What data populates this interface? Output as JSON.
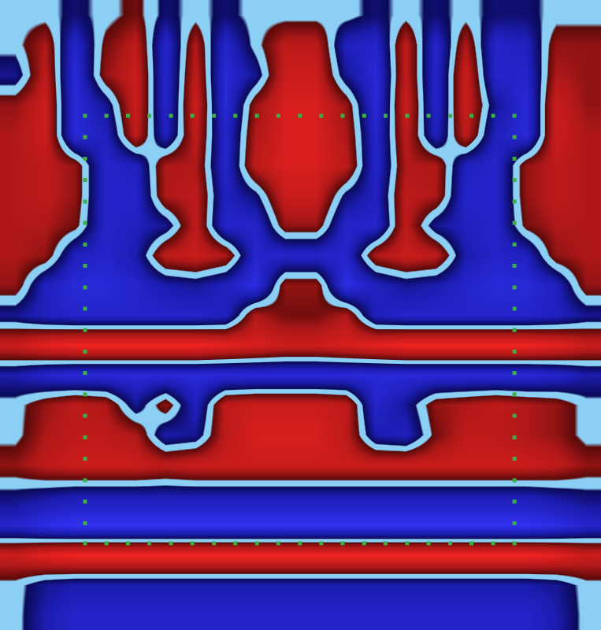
{
  "chart_data": {
    "type": "heatmap",
    "x": [
      0,
      1,
      2,
      3,
      4,
      5,
      6,
      7,
      8,
      9,
      10,
      11,
      12,
      13,
      14,
      15,
      16,
      17,
      18,
      19
    ],
    "y": [
      0,
      1,
      2,
      3,
      4,
      5,
      6,
      7,
      8,
      9,
      10,
      11,
      12,
      13,
      14,
      15,
      16,
      17,
      18,
      19,
      20
    ],
    "z": [
      [
        0,
        0,
        -0.2,
        0,
        0.2,
        -0.2,
        0,
        -0.2,
        0,
        0,
        0,
        0,
        -0.2,
        0,
        -0.2,
        0,
        -0.2,
        -0.2,
        0,
        0
      ],
      [
        0,
        0.4,
        -0.6,
        0.2,
        0.5,
        -0.6,
        0.4,
        -0.6,
        0,
        0.5,
        0.5,
        -0.5,
        -0.6,
        0.5,
        -0.6,
        0.4,
        -0.6,
        -0.5,
        0.3,
        0.3
      ],
      [
        -0.3,
        0.5,
        -0.7,
        0.3,
        0.6,
        -0.6,
        0.5,
        -0.7,
        -0.3,
        0.6,
        0.6,
        -0.3,
        -0.7,
        0.5,
        -0.6,
        0.6,
        -0.6,
        -0.6,
        0.4,
        0.3
      ],
      [
        0.3,
        0.6,
        -0.7,
        -0.3,
        0.6,
        -0.6,
        0.6,
        -0.7,
        0.3,
        0.7,
        0.7,
        0.3,
        -0.7,
        0.6,
        -0.6,
        0.6,
        -0.3,
        -0.7,
        0.6,
        0.3
      ],
      [
        0.4,
        0.6,
        -0.7,
        -0.5,
        0.5,
        -0.5,
        0.5,
        -0.6,
        0.4,
        0.7,
        0.7,
        0.4,
        -0.6,
        0.5,
        -0.5,
        0.5,
        -0.5,
        -0.7,
        0.6,
        0.4
      ],
      [
        0.4,
        0.5,
        0.3,
        -0.6,
        -0.5,
        0.4,
        0.4,
        -0.6,
        0.5,
        0.7,
        0.7,
        0.5,
        -0.6,
        0.4,
        0.4,
        -0.5,
        -0.6,
        0.3,
        0.5,
        0.4
      ],
      [
        0.4,
        0.5,
        0.3,
        -0.6,
        -0.6,
        0.4,
        0.5,
        -0.5,
        -0.2,
        0.6,
        0.6,
        -0.2,
        -0.5,
        0.5,
        0.4,
        -0.6,
        -0.6,
        0.3,
        0.5,
        0.4
      ],
      [
        0.4,
        0.4,
        0.2,
        -0.6,
        -0.5,
        -0.3,
        0.5,
        -0.6,
        -0.6,
        0.3,
        0.3,
        -0.6,
        -0.6,
        0.5,
        -0.3,
        -0.5,
        -0.6,
        0.2,
        0.4,
        0.4
      ],
      [
        0.4,
        0.3,
        -0.5,
        -0.6,
        -0.4,
        0.5,
        0.6,
        0.4,
        -0.6,
        -0.6,
        -0.6,
        -0.6,
        0.4,
        0.6,
        0.5,
        -0.4,
        -0.6,
        -0.5,
        0.3,
        0.4
      ],
      [
        0.3,
        -0.5,
        -0.7,
        -0.7,
        -0.6,
        -0.4,
        -0.3,
        -0.5,
        -0.8,
        0.3,
        0.3,
        -0.8,
        -0.5,
        -0.3,
        -0.4,
        -0.6,
        -0.7,
        -0.7,
        -0.5,
        0.3
      ],
      [
        -0.3,
        -0.5,
        -0.6,
        -0.6,
        -0.6,
        -0.6,
        -0.6,
        -0.5,
        0.4,
        0.2,
        0.2,
        0.4,
        -0.5,
        -0.6,
        -0.6,
        -0.6,
        -0.6,
        -0.6,
        -0.5,
        -0.3
      ],
      [
        0.6,
        0.8,
        0.9,
        0.9,
        0.9,
        0.9,
        0.9,
        0.8,
        0.7,
        0.6,
        0.6,
        0.7,
        0.8,
        0.9,
        0.9,
        0.9,
        0.9,
        0.9,
        0.8,
        0.6
      ],
      [
        -0.4,
        -0.6,
        -0.7,
        -0.7,
        -0.7,
        -0.7,
        -0.7,
        -0.7,
        -0.7,
        -0.7,
        -0.7,
        -0.7,
        -0.7,
        -0.7,
        -0.7,
        -0.7,
        -0.7,
        -0.7,
        -0.6,
        -0.4
      ],
      [
        0,
        0.3,
        0.5,
        0.4,
        -0.3,
        0.3,
        -0.5,
        0.5,
        0.6,
        0.6,
        0.6,
        0.5,
        -0.6,
        -0.3,
        0.3,
        0.4,
        0.5,
        0.4,
        0.3,
        0
      ],
      [
        0,
        0.4,
        0.5,
        0.5,
        0.4,
        -0.4,
        -0.3,
        0.5,
        0.7,
        0.7,
        0.7,
        0.5,
        -0.4,
        -0.5,
        0.2,
        0.5,
        0.5,
        0.4,
        0.3,
        0
      ],
      [
        0.3,
        0.5,
        0.6,
        0.6,
        0.6,
        0.5,
        0.6,
        0.6,
        0.6,
        0.6,
        0.6,
        0.6,
        0.6,
        0.6,
        0.6,
        0.6,
        0.6,
        0.6,
        0.5,
        0.3
      ],
      [
        -0.2,
        -0.3,
        -0.4,
        -0.4,
        -0.4,
        -0.4,
        -0.4,
        -0.4,
        -0.4,
        -0.4,
        -0.4,
        -0.4,
        -0.4,
        -0.4,
        -0.4,
        -0.4,
        -0.4,
        -0.4,
        -0.3,
        -0.2
      ],
      [
        -0.6,
        -0.8,
        -0.9,
        -0.9,
        -0.9,
        -0.9,
        -0.9,
        -0.9,
        -0.9,
        -0.9,
        -0.9,
        -0.9,
        -0.9,
        -0.9,
        -0.9,
        -0.9,
        -0.9,
        -0.9,
        -0.8,
        -0.6
      ],
      [
        0.6,
        0.8,
        0.9,
        0.9,
        0.9,
        0.9,
        0.9,
        0.9,
        0.9,
        0.9,
        0.9,
        0.9,
        0.9,
        0.9,
        0.9,
        0.9,
        0.9,
        0.9,
        0.8,
        0.6
      ],
      [
        0,
        -0.3,
        -0.4,
        -0.4,
        -0.4,
        -0.4,
        -0.4,
        -0.4,
        -0.4,
        -0.4,
        -0.4,
        -0.4,
        -0.4,
        -0.4,
        -0.4,
        -0.4,
        -0.4,
        -0.4,
        -0.3,
        0
      ],
      [
        0,
        -0.4,
        -0.6,
        -0.6,
        -0.6,
        -0.6,
        -0.6,
        -0.6,
        -0.6,
        -0.6,
        -0.6,
        -0.6,
        -0.6,
        -0.6,
        -0.6,
        -0.6,
        -0.6,
        -0.6,
        -0.4,
        0
      ]
    ],
    "zlim": [
      -1,
      1
    ],
    "xlim": [
      -0.5,
      19.5
    ],
    "ylim": [
      20.5,
      -0.5
    ],
    "tick_labels": false,
    "grid": false,
    "points": {
      "type": "scatter",
      "color": "#3cb043",
      "marker": "square",
      "x": [
        2.33,
        3.04,
        3.76,
        4.47,
        5.19,
        5.9,
        6.62,
        7.33,
        8.05,
        8.76,
        9.48,
        10.19,
        10.9,
        11.62,
        12.33,
        13.05,
        13.76,
        14.48,
        15.19,
        15.91,
        16.62,
        2.33,
        3.04,
        3.76,
        4.47,
        5.19,
        5.9,
        6.62,
        7.33,
        8.05,
        8.76,
        9.48,
        10.19,
        10.9,
        11.62,
        12.33,
        13.05,
        13.76,
        14.48,
        15.19,
        15.91,
        16.62,
        2.33,
        2.33,
        2.33,
        2.33,
        2.33,
        2.33,
        2.33,
        2.33,
        2.33,
        2.33,
        2.33,
        2.33,
        2.33,
        2.33,
        2.33,
        2.33,
        2.33,
        2.33,
        2.33,
        16.62,
        16.62,
        16.62,
        16.62,
        16.62,
        16.62,
        16.62,
        16.62,
        16.62,
        16.62,
        16.62,
        16.62,
        16.62,
        16.62,
        16.62,
        16.62,
        16.62,
        16.62,
        16.62
      ],
      "y": [
        3.36,
        3.36,
        3.36,
        3.36,
        3.36,
        3.36,
        3.36,
        3.36,
        3.36,
        3.36,
        3.36,
        3.36,
        3.36,
        3.36,
        3.36,
        3.36,
        3.36,
        3.36,
        3.36,
        3.36,
        3.36,
        17.61,
        17.61,
        17.61,
        17.61,
        17.61,
        17.61,
        17.61,
        17.61,
        17.61,
        17.61,
        17.61,
        17.61,
        17.61,
        17.61,
        17.61,
        17.61,
        17.61,
        17.61,
        17.61,
        17.61,
        17.61,
        4.07,
        4.79,
        5.5,
        6.22,
        6.93,
        7.65,
        8.36,
        9.08,
        9.79,
        10.5,
        11.22,
        11.93,
        12.65,
        13.36,
        14.08,
        14.79,
        15.51,
        16.22,
        16.94,
        4.07,
        4.79,
        5.5,
        6.22,
        6.93,
        7.65,
        8.36,
        9.08,
        9.79,
        10.5,
        11.22,
        11.93,
        12.65,
        13.36,
        14.08,
        14.79,
        15.51,
        16.22,
        16.94
      ]
    }
  }
}
